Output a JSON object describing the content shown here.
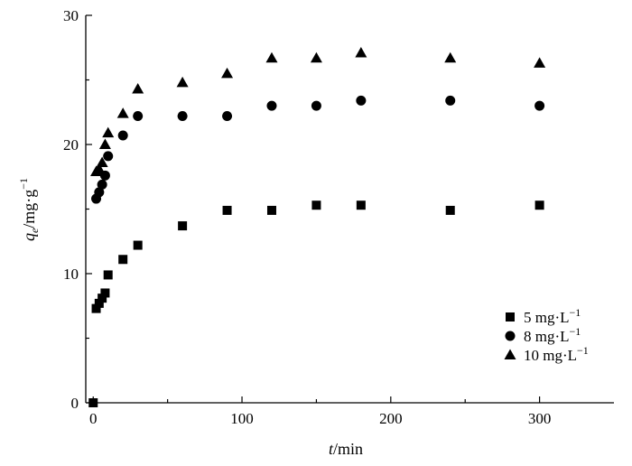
{
  "chart_data": {
    "type": "scatter",
    "title": "",
    "xlabel": {
      "var": "t",
      "unit": "/min"
    },
    "ylabel": {
      "var": "q",
      "sub": "e",
      "unit": "/mg·g",
      "sup": "−1"
    },
    "xlim": [
      -5,
      350
    ],
    "ylim": [
      0,
      30
    ],
    "xticks": [
      0,
      100,
      200,
      300
    ],
    "yticks": [
      0,
      10,
      20,
      30
    ],
    "grid": false,
    "legend_position": "bottom-right",
    "series": [
      {
        "name": "5 mg·L",
        "name_sup": "−1",
        "marker": "square",
        "x": [
          0,
          2,
          4,
          6,
          8,
          10,
          20,
          30,
          60,
          90,
          120,
          150,
          180,
          240,
          300
        ],
        "y": [
          0,
          7.3,
          7.7,
          8.1,
          8.5,
          9.9,
          11.1,
          12.2,
          13.7,
          14.9,
          14.9,
          15.3,
          15.3,
          14.9,
          15.3
        ]
      },
      {
        "name": "8 mg·L",
        "name_sup": "−1",
        "marker": "circle",
        "x": [
          2,
          4,
          6,
          8,
          10,
          20,
          30,
          60,
          90,
          120,
          150,
          180,
          240,
          300
        ],
        "y": [
          15.8,
          16.3,
          16.9,
          17.6,
          19.1,
          20.7,
          22.2,
          22.2,
          22.2,
          23.0,
          23.0,
          23.4,
          23.4,
          23.0
        ]
      },
      {
        "name": "10 mg·L",
        "name_sup": "−1",
        "marker": "triangle",
        "x": [
          2,
          4,
          6,
          8,
          10,
          20,
          30,
          60,
          90,
          120,
          150,
          180,
          240,
          300
        ],
        "y": [
          17.9,
          18.1,
          18.6,
          20.0,
          20.9,
          22.4,
          24.3,
          24.8,
          25.5,
          26.7,
          26.7,
          27.1,
          26.7,
          26.3
        ]
      }
    ]
  }
}
